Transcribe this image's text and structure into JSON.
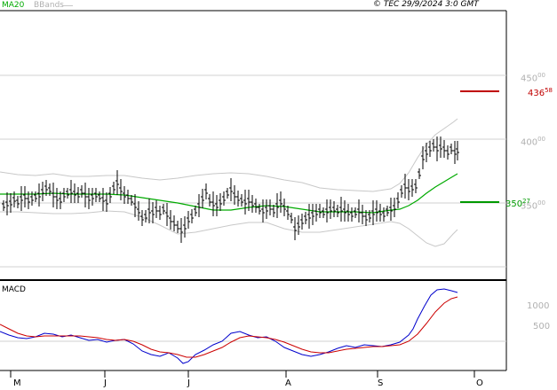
{
  "header": {
    "legend_ma": "MA20",
    "legend_bb": "BBands",
    "stamp": "© TEC 29/9/2024 3:0 GMT"
  },
  "price_axis": {
    "ticks": [
      "450",
      "400",
      "350"
    ],
    "tick_superscripts": [
      "00",
      "00",
      "00"
    ]
  },
  "levels": {
    "resistance": {
      "value": "436",
      "superscript": "58",
      "color": "#c00000"
    },
    "support": {
      "value": "350",
      "superscript": "27",
      "color": "#009900"
    }
  },
  "macd": {
    "title": "MACD",
    "ticks": [
      "1000",
      "500"
    ],
    "line_color": "#0000cc",
    "signal_color": "#cc0000"
  },
  "months": [
    "M",
    "J",
    "J",
    "A",
    "S",
    "O"
  ],
  "colors": {
    "ma": "#00aa00",
    "bands": "#c8c8c8",
    "bars": "#000000",
    "grid": "#d0d0d0"
  }
}
